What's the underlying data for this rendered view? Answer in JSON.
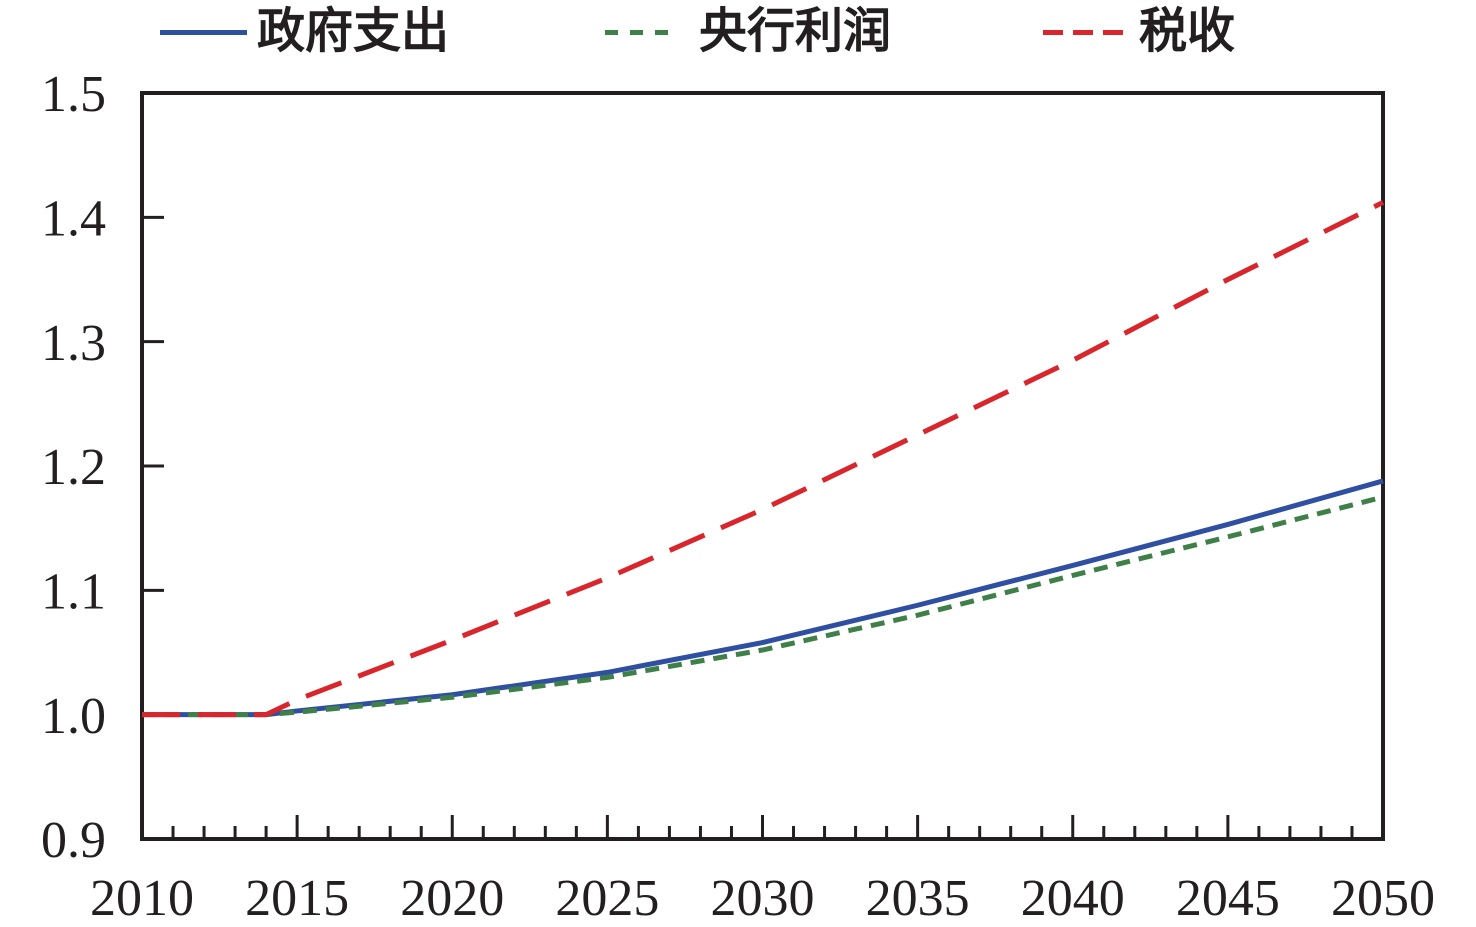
{
  "figure": {
    "background": "#ffffff",
    "axis_color": "#231f20",
    "accent_blue": "#2f4fa2",
    "accent_green": "#3e8047",
    "accent_red": "#d8262c"
  },
  "legend": {
    "position": "top",
    "items": [
      {
        "label": "政府支出",
        "series": "government-spending",
        "line_style": "solid",
        "color": "#2f4fa2"
      },
      {
        "label": "央行利润",
        "series": "central-bank-profit",
        "line_style": "dashed-short",
        "color": "#3e8047"
      },
      {
        "label": "税收",
        "series": "tax-revenue",
        "line_style": "dashed-long",
        "color": "#d8262c"
      }
    ]
  },
  "chart_data": {
    "type": "line",
    "title": "",
    "xlabel": "",
    "ylabel": "",
    "grid": false,
    "legend_position": "top",
    "xlim": [
      2010,
      2050
    ],
    "ylim": [
      0.9,
      1.5
    ],
    "x_ticks_major": [
      2010,
      2015,
      2020,
      2025,
      2030,
      2035,
      2040,
      2045,
      2050
    ],
    "x_tick_labels": [
      "2010",
      "2015",
      "2020",
      "2025",
      "2030",
      "2035",
      "2040",
      "2045",
      "2050"
    ],
    "x_minor_step": 1,
    "y_ticks": [
      0.9,
      1.0,
      1.1,
      1.2,
      1.3,
      1.4,
      1.5
    ],
    "y_tick_labels": [
      "0.9",
      "1.0",
      "1.1",
      "1.2",
      "1.3",
      "1.4",
      "1.5"
    ],
    "x": [
      2010,
      2014,
      2015,
      2020,
      2025,
      2030,
      2035,
      2040,
      2045,
      2050
    ],
    "series": [
      {
        "name": "政府支出",
        "color": "#2f4fa2",
        "style": "solid",
        "values": [
          1.0,
          1.0,
          1.003,
          1.016,
          1.034,
          1.058,
          1.088,
          1.12,
          1.153,
          1.188
        ]
      },
      {
        "name": "央行利润",
        "color": "#3e8047",
        "style": "dashed-short",
        "values": [
          1.0,
          1.0,
          1.002,
          1.014,
          1.03,
          1.052,
          1.08,
          1.112,
          1.143,
          1.175
        ]
      },
      {
        "name": "税收",
        "color": "#d8262c",
        "style": "dashed-long",
        "values": [
          1.0,
          1.0,
          1.012,
          1.06,
          1.11,
          1.165,
          1.225,
          1.285,
          1.35,
          1.412
        ]
      }
    ]
  }
}
